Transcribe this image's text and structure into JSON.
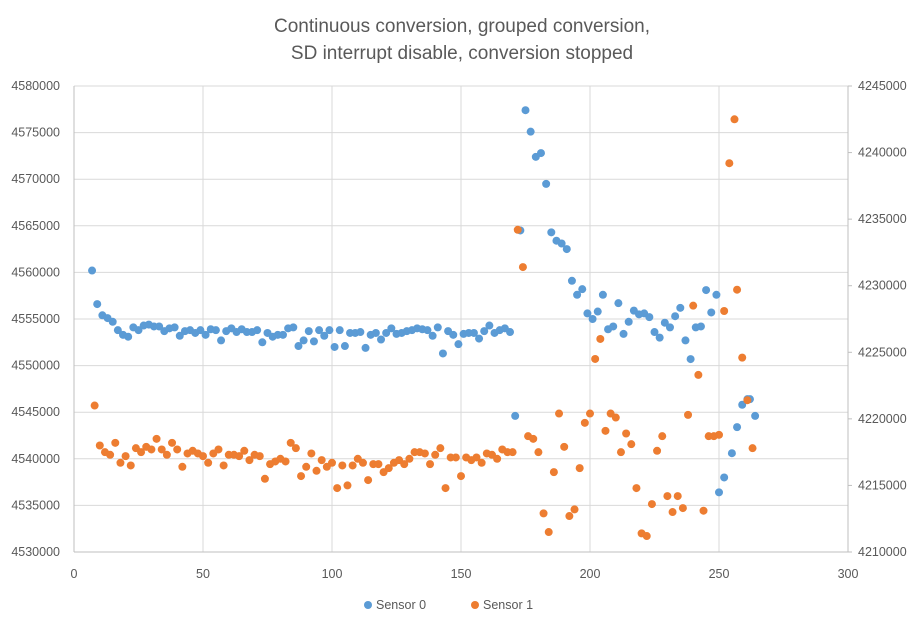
{
  "chart_data": {
    "type": "scatter",
    "title": [
      "Continuous conversion, grouped conversion,",
      "SD interrupt disable, conversion stopped"
    ],
    "xlabel": "",
    "ylabel": "",
    "y2label": "",
    "xlim": [
      0,
      300
    ],
    "ylim": [
      4530000,
      4580000
    ],
    "y2lim": [
      4210000,
      4245000
    ],
    "x_ticks": [
      "0",
      "50",
      "100",
      "150",
      "200",
      "250",
      "300"
    ],
    "y_ticks": [
      "4530000",
      "4535000",
      "4540000",
      "4545000",
      "4550000",
      "4555000",
      "4560000",
      "4565000",
      "4570000",
      "4575000",
      "4580000"
    ],
    "y2_ticks": [
      "4210000",
      "4215000",
      "4220000",
      "4225000",
      "4230000",
      "4235000",
      "4240000",
      "4245000"
    ],
    "grid": true,
    "legend_position": "bottom",
    "series": [
      {
        "name": "Sensor 0",
        "axis": "left",
        "color": "#5b9bd5",
        "points": [
          [
            7,
            4560200
          ],
          [
            9,
            4556600
          ],
          [
            11,
            4555400
          ],
          [
            13,
            4555100
          ],
          [
            15,
            4554700
          ],
          [
            17,
            4553800
          ],
          [
            19,
            4553300
          ],
          [
            21,
            4553100
          ],
          [
            23,
            4554100
          ],
          [
            25,
            4553800
          ],
          [
            27,
            4554300
          ],
          [
            29,
            4554400
          ],
          [
            31,
            4554200
          ],
          [
            33,
            4554200
          ],
          [
            35,
            4553700
          ],
          [
            37,
            4554000
          ],
          [
            39,
            4554100
          ],
          [
            41,
            4553200
          ],
          [
            43,
            4553700
          ],
          [
            45,
            4553800
          ],
          [
            47,
            4553500
          ],
          [
            49,
            4553800
          ],
          [
            51,
            4553300
          ],
          [
            53,
            4553900
          ],
          [
            55,
            4553800
          ],
          [
            57,
            4552700
          ],
          [
            59,
            4553700
          ],
          [
            61,
            4554000
          ],
          [
            63,
            4553600
          ],
          [
            65,
            4553900
          ],
          [
            67,
            4553600
          ],
          [
            69,
            4553600
          ],
          [
            71,
            4553800
          ],
          [
            73,
            4552500
          ],
          [
            75,
            4553500
          ],
          [
            77,
            4553100
          ],
          [
            79,
            4553300
          ],
          [
            81,
            4553300
          ],
          [
            83,
            4554000
          ],
          [
            85,
            4554100
          ],
          [
            87,
            4552100
          ],
          [
            89,
            4552700
          ],
          [
            91,
            4553700
          ],
          [
            93,
            4552600
          ],
          [
            95,
            4553800
          ],
          [
            97,
            4553200
          ],
          [
            99,
            4553800
          ],
          [
            101,
            4552000
          ],
          [
            103,
            4553800
          ],
          [
            105,
            4552100
          ],
          [
            107,
            4553500
          ],
          [
            109,
            4553500
          ],
          [
            111,
            4553600
          ],
          [
            113,
            4551900
          ],
          [
            115,
            4553300
          ],
          [
            117,
            4553500
          ],
          [
            119,
            4552800
          ],
          [
            121,
            4553500
          ],
          [
            123,
            4554000
          ],
          [
            125,
            4553400
          ],
          [
            127,
            4553500
          ],
          [
            129,
            4553700
          ],
          [
            131,
            4553800
          ],
          [
            133,
            4554000
          ],
          [
            135,
            4553900
          ],
          [
            137,
            4553800
          ],
          [
            139,
            4553200
          ],
          [
            141,
            4554100
          ],
          [
            143,
            4551300
          ],
          [
            145,
            4553700
          ],
          [
            147,
            4553300
          ],
          [
            149,
            4552300
          ],
          [
            151,
            4553400
          ],
          [
            153,
            4553500
          ],
          [
            155,
            4553500
          ],
          [
            157,
            4552900
          ],
          [
            159,
            4553700
          ],
          [
            161,
            4554300
          ],
          [
            163,
            4553500
          ],
          [
            165,
            4553800
          ],
          [
            167,
            4554000
          ],
          [
            169,
            4553600
          ],
          [
            171,
            4544600
          ],
          [
            173,
            4564500
          ],
          [
            175,
            4577400
          ],
          [
            177,
            4575100
          ],
          [
            179,
            4572400
          ],
          [
            181,
            4572800
          ],
          [
            183,
            4569500
          ],
          [
            185,
            4564300
          ],
          [
            187,
            4563400
          ],
          [
            189,
            4563100
          ],
          [
            191,
            4562500
          ],
          [
            193,
            4559100
          ],
          [
            195,
            4557600
          ],
          [
            197,
            4558200
          ],
          [
            199,
            4555600
          ],
          [
            201,
            4555000
          ],
          [
            203,
            4555800
          ],
          [
            205,
            4557600
          ],
          [
            207,
            4553900
          ],
          [
            209,
            4554200
          ],
          [
            211,
            4556700
          ],
          [
            213,
            4553400
          ],
          [
            215,
            4554700
          ],
          [
            217,
            4555900
          ],
          [
            219,
            4555500
          ],
          [
            221,
            4555600
          ],
          [
            223,
            4555200
          ],
          [
            225,
            4553600
          ],
          [
            227,
            4553000
          ],
          [
            229,
            4554600
          ],
          [
            231,
            4554100
          ],
          [
            233,
            4555300
          ],
          [
            235,
            4556200
          ],
          [
            237,
            4552700
          ],
          [
            239,
            4550700
          ],
          [
            241,
            4554100
          ],
          [
            243,
            4554200
          ],
          [
            245,
            4558100
          ],
          [
            247,
            4555700
          ],
          [
            249,
            4557600
          ],
          [
            250,
            4536400
          ],
          [
            252,
            4538000
          ],
          [
            255,
            4540600
          ],
          [
            257,
            4543400
          ],
          [
            259,
            4545800
          ],
          [
            261,
            4546400
          ],
          [
            262,
            4546400
          ],
          [
            264,
            4544600
          ]
        ]
      },
      {
        "name": "Sensor 1",
        "axis": "right",
        "color": "#ed7d31",
        "points": [
          [
            8,
            4221000
          ],
          [
            10,
            4218000
          ],
          [
            12,
            4217500
          ],
          [
            14,
            4217300
          ],
          [
            16,
            4218200
          ],
          [
            18,
            4216700
          ],
          [
            20,
            4217200
          ],
          [
            22,
            4216500
          ],
          [
            24,
            4217800
          ],
          [
            26,
            4217500
          ],
          [
            28,
            4217900
          ],
          [
            30,
            4217700
          ],
          [
            32,
            4218500
          ],
          [
            34,
            4217700
          ],
          [
            36,
            4217300
          ],
          [
            38,
            4218200
          ],
          [
            40,
            4217700
          ],
          [
            42,
            4216400
          ],
          [
            44,
            4217400
          ],
          [
            46,
            4217600
          ],
          [
            48,
            4217400
          ],
          [
            50,
            4217200
          ],
          [
            52,
            4216700
          ],
          [
            54,
            4217400
          ],
          [
            56,
            4217700
          ],
          [
            58,
            4216500
          ],
          [
            60,
            4217300
          ],
          [
            62,
            4217300
          ],
          [
            64,
            4217200
          ],
          [
            66,
            4217600
          ],
          [
            68,
            4216900
          ],
          [
            70,
            4217300
          ],
          [
            72,
            4217200
          ],
          [
            74,
            4215500
          ],
          [
            76,
            4216600
          ],
          [
            78,
            4216800
          ],
          [
            80,
            4217000
          ],
          [
            82,
            4216800
          ],
          [
            84,
            4218200
          ],
          [
            86,
            4217800
          ],
          [
            88,
            4215700
          ],
          [
            90,
            4216400
          ],
          [
            92,
            4217400
          ],
          [
            94,
            4216100
          ],
          [
            96,
            4216900
          ],
          [
            98,
            4216400
          ],
          [
            100,
            4216700
          ],
          [
            102,
            4214800
          ],
          [
            104,
            4216500
          ],
          [
            106,
            4215000
          ],
          [
            108,
            4216500
          ],
          [
            110,
            4217000
          ],
          [
            112,
            4216700
          ],
          [
            114,
            4215400
          ],
          [
            116,
            4216600
          ],
          [
            118,
            4216600
          ],
          [
            120,
            4216000
          ],
          [
            122,
            4216300
          ],
          [
            124,
            4216700
          ],
          [
            126,
            4216900
          ],
          [
            128,
            4216600
          ],
          [
            130,
            4217000
          ],
          [
            132,
            4217500
          ],
          [
            134,
            4217500
          ],
          [
            136,
            4217400
          ],
          [
            138,
            4216600
          ],
          [
            140,
            4217300
          ],
          [
            142,
            4217800
          ],
          [
            144,
            4214800
          ],
          [
            146,
            4217100
          ],
          [
            148,
            4217100
          ],
          [
            150,
            4215700
          ],
          [
            152,
            4217100
          ],
          [
            154,
            4216900
          ],
          [
            156,
            4217100
          ],
          [
            158,
            4216700
          ],
          [
            160,
            4217400
          ],
          [
            162,
            4217300
          ],
          [
            164,
            4217000
          ],
          [
            166,
            4217700
          ],
          [
            168,
            4217500
          ],
          [
            170,
            4217500
          ],
          [
            172,
            4234200
          ],
          [
            174,
            4231400
          ],
          [
            176,
            4218700
          ],
          [
            178,
            4218500
          ],
          [
            180,
            4217500
          ],
          [
            182,
            4212900
          ],
          [
            184,
            4211500
          ],
          [
            186,
            4216000
          ],
          [
            188,
            4220400
          ],
          [
            190,
            4217900
          ],
          [
            192,
            4212700
          ],
          [
            194,
            4213200
          ],
          [
            196,
            4216300
          ],
          [
            198,
            4219700
          ],
          [
            200,
            4220400
          ],
          [
            202,
            4224500
          ],
          [
            204,
            4226000
          ],
          [
            206,
            4219100
          ],
          [
            208,
            4220400
          ],
          [
            210,
            4220100
          ],
          [
            212,
            4217500
          ],
          [
            214,
            4218900
          ],
          [
            216,
            4218100
          ],
          [
            218,
            4214800
          ],
          [
            220,
            4211400
          ],
          [
            222,
            4211200
          ],
          [
            224,
            4213600
          ],
          [
            226,
            4217600
          ],
          [
            228,
            4218700
          ],
          [
            230,
            4214200
          ],
          [
            232,
            4213000
          ],
          [
            234,
            4214200
          ],
          [
            236,
            4213300
          ],
          [
            238,
            4220300
          ],
          [
            240,
            4228500
          ],
          [
            242,
            4223300
          ],
          [
            244,
            4213100
          ],
          [
            246,
            4218700
          ],
          [
            248,
            4218700
          ],
          [
            250,
            4218800
          ],
          [
            252,
            4228100
          ],
          [
            254,
            4239200
          ],
          [
            256,
            4242500
          ],
          [
            257,
            4229700
          ],
          [
            259,
            4224600
          ],
          [
            261,
            4221400
          ],
          [
            263,
            4217800
          ]
        ]
      }
    ]
  }
}
